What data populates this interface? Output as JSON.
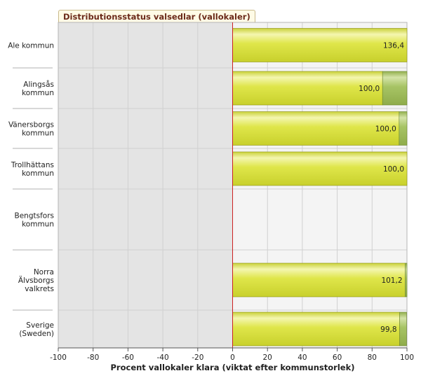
{
  "chart_data": {
    "type": "bar",
    "orientation": "horizontal",
    "title": "Distributionsstatus valsedlar (vallokaler)",
    "xlabel": "Procent vallokaler klara (viktat efter kommunstorlek)",
    "xlim": [
      -100,
      100
    ],
    "xticks": [
      "-100",
      "-80",
      "-60",
      "-40",
      "-20",
      "0",
      "20",
      "40",
      "60",
      "80",
      "100"
    ],
    "grid": true,
    "categories": [
      [
        "Ale kommun"
      ],
      [
        "Alingsås",
        "kommun"
      ],
      [
        "Vänersborgs",
        "kommun"
      ],
      [
        "Trollhättans",
        "kommun"
      ],
      [
        "Bengtsfors",
        "kommun"
      ],
      [
        "Norra",
        "Älvsborgs",
        "valkrets"
      ],
      [
        "Sverige",
        "(Sweden)"
      ]
    ],
    "values": [
      136.4,
      100.0,
      100.0,
      100.0,
      null,
      101.2,
      99.8
    ],
    "value_labels": [
      "136,4",
      "100,0",
      "100,0",
      "100,0",
      "",
      "101,2",
      "99,8"
    ],
    "green_portion": [
      0,
      14,
      4.5,
      0,
      0,
      1,
      4
    ],
    "colors": {
      "bar_yellow": "#d4dc3c",
      "bar_green": "#9cb95a",
      "zero_line": "#cc2222",
      "bg_left": "#e4e4e4",
      "bg_right": "#f4f4f4"
    }
  }
}
